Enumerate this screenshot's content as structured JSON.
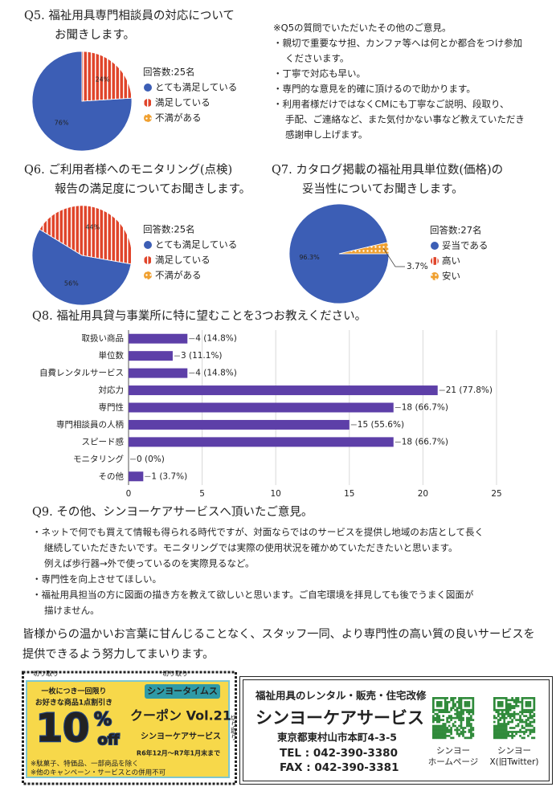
{
  "chart_data": [
    {
      "type": "pie",
      "title": [
        "Q5. 福祉用具専門相談員の対応について",
        "お聞きします。"
      ],
      "note": "回答数:25名",
      "categories": [
        "とても満足している",
        "満足している",
        "不満がある"
      ],
      "values": [
        76,
        24,
        0
      ],
      "value_labels": [
        "76%",
        "24%",
        null
      ],
      "colors": [
        "#3c5eb5",
        "#e0452b",
        "#f0a030"
      ]
    },
    {
      "type": "pie",
      "title": [
        "Q6. ご利用者様へのモニタリング(点検)",
        "報告の満足度についてお聞きします。"
      ],
      "note": "回答数:25名",
      "categories": [
        "とても満足している",
        "満足している",
        "不満がある"
      ],
      "values": [
        56,
        44,
        0
      ],
      "value_labels": [
        "56%",
        "44%",
        null
      ],
      "colors": [
        "#3c5eb5",
        "#e0452b",
        "#f0a030"
      ]
    },
    {
      "type": "pie",
      "title": [
        "Q7. カタログ掲載の福祉用具単位数(価格)の",
        "妥当性についてお聞きします。"
      ],
      "note": "回答数:27名",
      "categories": [
        "妥当である",
        "高い",
        "安い"
      ],
      "values": [
        96.3,
        0,
        3.7
      ],
      "value_labels": [
        "96.3%",
        null,
        "3.7%"
      ],
      "colors": [
        "#3c5eb5",
        "#e0452b",
        "#f0a030"
      ]
    },
    {
      "type": "bar",
      "title": "Q8. 福祉用具貸与事業所に特に望むことを3つお教えください。",
      "categories": [
        "取扱い商品",
        "単位数",
        "自費レンタルサービス",
        "対応力",
        "専門性",
        "専門相談員の人柄",
        "スピード感",
        "モニタリング",
        "その他"
      ],
      "values": [
        4,
        3,
        4,
        21,
        18,
        15,
        18,
        0,
        1
      ],
      "value_labels": [
        "4 (14.8%)",
        "3 (11.1%)",
        "4 (14.8%)",
        "21 (77.8%)",
        "18 (66.7%)",
        "15 (55.6%)",
        "18 (66.7%)",
        "0 (0%)",
        "1 (3.7%)"
      ],
      "color": "#5d3fa8",
      "xlim": [
        0,
        25
      ],
      "xticks": [
        0,
        5,
        10,
        15,
        20,
        25
      ],
      "grid": true
    }
  ],
  "q5_comments": [
    "※Q5の質問でいただいたその他のご意見。",
    "・親切で重要なサ担、カンファ等へは何とか都合をつけ参加",
    "くださいます。",
    "・丁寧で対応も早い。",
    "・専門的な意見を的確に頂けるので助かります。",
    "・利用者様だけではなくCMにも丁寧なご説明、段取り、",
    "手配、ご連絡など、また気付かない事など教えていただき",
    "感謝申し上げます。"
  ],
  "q9": {
    "title": "Q9. その他、シンヨーケアサービスへ頂いたご意見。",
    "lines": [
      "・ネットで何でも買えて情報も得られる時代ですが、対面ならではのサービスを提供し地域のお店として長く",
      "継続していただきたいです。モニタリングでは実際の使用状況を確かめていただきたいと思います。",
      "例えば歩行器→外で使っているのを実際見るなど。",
      "・専門性を向上させてほしい。",
      "・福祉用具担当の方に図面の描き方を教えて欲しいと思います。ご自宅環境を拝見しても後でうまく図面が",
      "描けません。"
    ]
  },
  "closing": [
    "皆様からの温かいお言葉に甘んじることなく、スタッフ一同、より専門性の高い質の良いサービスを",
    "提供できるよう努力してまいります。"
  ],
  "coupon": {
    "cut_top": [
      "切り取り",
      "切り取り"
    ],
    "cut_side": "切り取り",
    "limit": "一枚につき一回限り",
    "item": "お好きな商品1点割引き",
    "big": "10",
    "pct": "%",
    "off": "off",
    "times": "シンヨータイムス",
    "vol": "クーポン Vol.21",
    "shop": "シンヨーケアサービス",
    "period": "R6年12月～R7年1月末まで",
    "notes": [
      "※駄菓子、特価品、一部商品を除く",
      "※他のキャンペーン・サービスとの併用不可"
    ]
  },
  "company": {
    "tagline": "福祉用具のレンタル・販売・住宅改修",
    "name": "シンヨーケアサービス",
    "address": "東京都東村山市本町4-3-5",
    "tel": "TEL : 042-390-3380",
    "fax": "FAX : 042-390-3381",
    "qr": [
      [
        "シンヨー",
        "ホームページ"
      ],
      [
        "シンヨー",
        "X(旧Twitter)"
      ]
    ]
  }
}
